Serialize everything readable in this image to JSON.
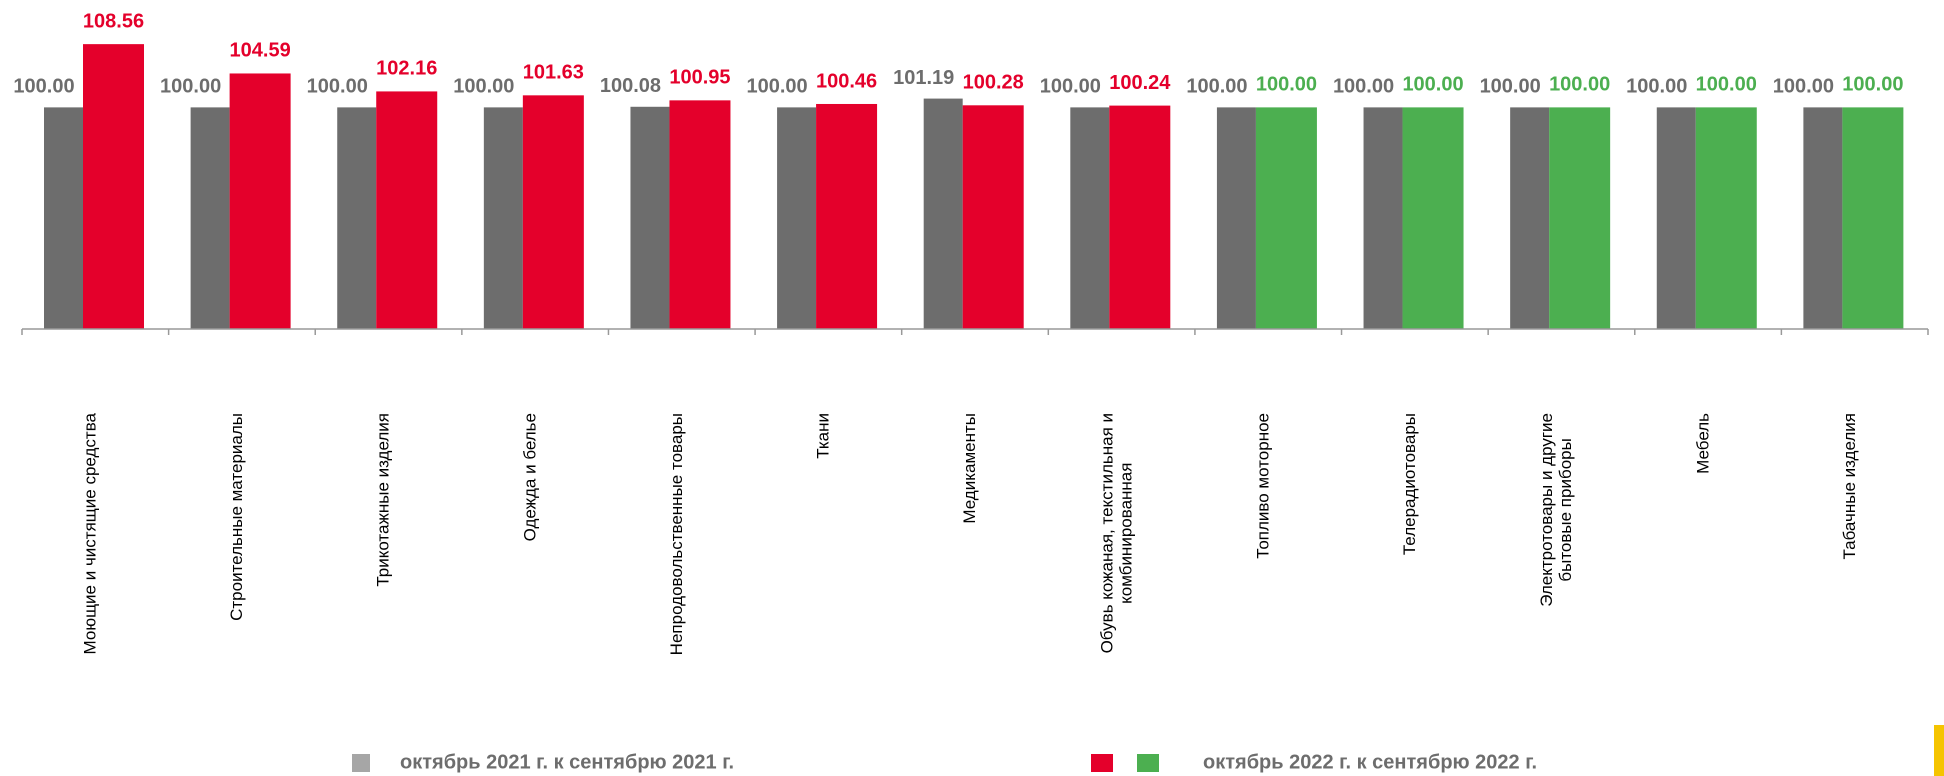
{
  "chart_data": {
    "type": "bar",
    "categories": [
      "Моющие и чистящие средства",
      "Строительные материалы",
      "Трикотажные изделия",
      "Одежда и белье",
      "Непродовольственные товары",
      "Ткани",
      "Медикаменты",
      "Обувь кожаная, текстильная и комбинированная",
      "Топливо моторное",
      "Телерадиотовары",
      "Электротовары и другие бытовые приборы",
      "Мебель",
      "Табачные изделия"
    ],
    "series": [
      {
        "name": "октябрь 2021 г. к сентябрю 2021 г.",
        "color": "#6d6d6d",
        "legend_color": "#a6a6a6",
        "values": [
          100,
          100,
          100,
          100,
          100.08,
          100,
          101.19,
          100,
          100,
          100,
          100,
          100,
          100
        ],
        "value_labels": [
          "100.00",
          "100.00",
          "100.00",
          "100.00",
          "100.08",
          "100.00",
          "101.19",
          "100.00",
          "100.00",
          "100.00",
          "100.00",
          "100.00",
          "100.00"
        ]
      },
      {
        "name": "октябрь 2022 г. к сентябрю 2022 г.",
        "colors": [
          "#e4002b",
          "#e4002b",
          "#e4002b",
          "#e4002b",
          "#e4002b",
          "#e4002b",
          "#e4002b",
          "#e4002b",
          "#4caf50",
          "#4caf50",
          "#4caf50",
          "#4caf50",
          "#4caf50"
        ],
        "values": [
          108.56,
          104.59,
          102.16,
          101.63,
          100.95,
          100.46,
          100.28,
          100.24,
          100,
          100,
          100,
          100,
          100
        ],
        "value_labels": [
          "108.56",
          "104.59",
          "102.16",
          "101.63",
          "100.95",
          "100.46",
          "100.28",
          "100.24",
          "100.00",
          "100.00",
          "100.00",
          "100.00",
          "100.00"
        ]
      }
    ],
    "ylim": [
      70,
      110
    ]
  }
}
